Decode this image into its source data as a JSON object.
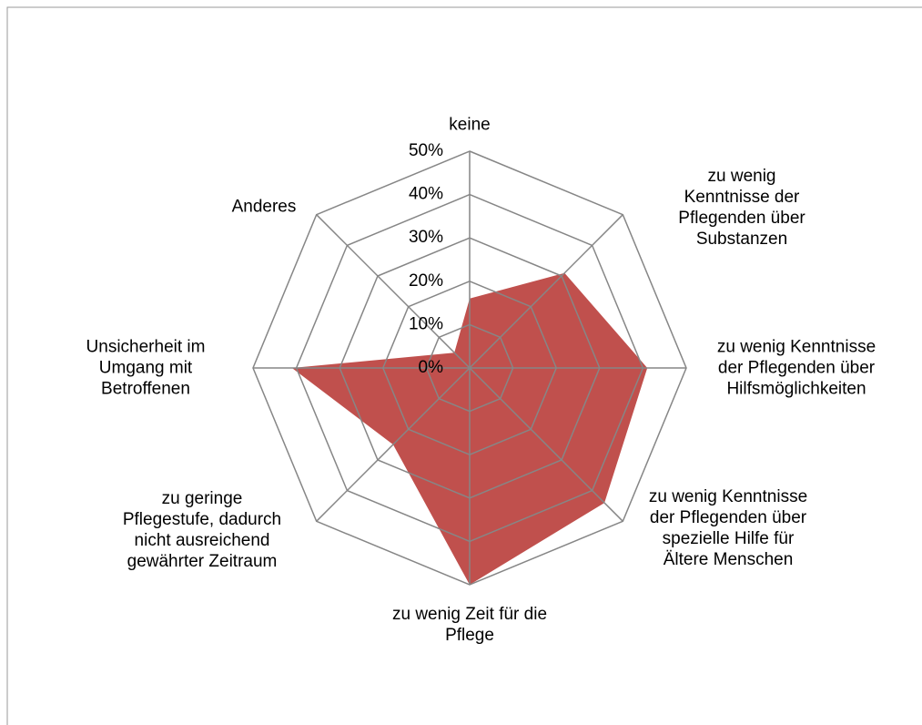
{
  "chart_data": {
    "type": "radar",
    "categories": [
      "keine",
      "zu wenig Kenntnisse der Pflegenden über Substanzen",
      "zu wenig Kenntnisse der Pflegenden über Hilfsmöglichkeiten",
      "zu wenig Kenntnisse der Pflegenden über spezielle Hilfe für Ältere Menschen",
      "zu wenig Zeit für die Pflege",
      "zu geringe Pflegestufe, dadurch nicht ausreichend gewährter Zeitraum",
      "Unsicherheit im Umgang mit Betroffenen",
      "Anderes"
    ],
    "values": [
      16,
      31,
      41,
      44,
      50,
      25,
      41,
      5
    ],
    "color": "#c0504d",
    "ylim": [
      0,
      50
    ],
    "yticks": [
      {
        "value": 0,
        "label": "0%"
      },
      {
        "value": 10,
        "label": "10%"
      },
      {
        "value": 20,
        "label": "20%"
      },
      {
        "value": 30,
        "label": "30%"
      },
      {
        "value": 40,
        "label": "40%"
      },
      {
        "value": 50,
        "label": "50%"
      }
    ],
    "grid": true
  }
}
